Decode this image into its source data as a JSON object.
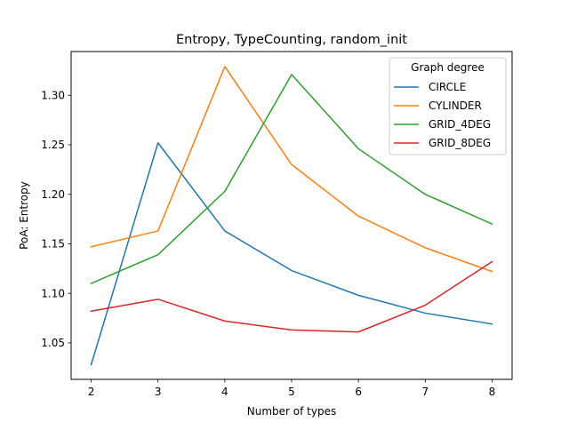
{
  "chart_data": {
    "type": "line",
    "title": "Entropy, TypeCounting, random_init",
    "xlabel": "Number of types",
    "ylabel": "PoA: Entropy",
    "x": [
      2,
      3,
      4,
      5,
      6,
      7,
      8
    ],
    "xlim": [
      1.7,
      8.3
    ],
    "ylim": [
      1.0131,
      1.3442
    ],
    "x_ticks": [
      "2",
      "3",
      "4",
      "5",
      "6",
      "7",
      "8"
    ],
    "y_ticks": [
      "1.05",
      "1.10",
      "1.15",
      "1.20",
      "1.25",
      "1.30"
    ],
    "grid": false,
    "legend": {
      "title": "Graph degree",
      "position": "top-right"
    },
    "series": [
      {
        "name": "CIRCLE",
        "color": "#1f77b4",
        "values": [
          1.028,
          1.252,
          1.163,
          1.123,
          1.098,
          1.08,
          1.069
        ]
      },
      {
        "name": "CYLINDER",
        "color": "#ff7f0e",
        "values": [
          1.147,
          1.163,
          1.329,
          1.23,
          1.178,
          1.146,
          1.122
        ]
      },
      {
        "name": "GRID_4DEG",
        "color": "#2ca02c",
        "values": [
          1.11,
          1.139,
          1.203,
          1.321,
          1.246,
          1.2,
          1.17
        ]
      },
      {
        "name": "GRID_8DEG",
        "color": "#d62728",
        "values": [
          1.082,
          1.094,
          1.072,
          1.063,
          1.061,
          1.088,
          1.132
        ]
      }
    ]
  }
}
